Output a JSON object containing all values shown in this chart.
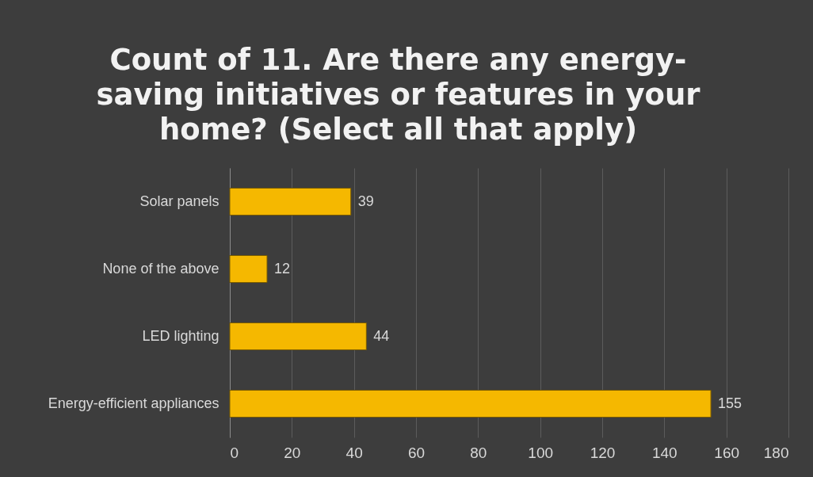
{
  "chart_data": {
    "type": "bar",
    "orientation": "horizontal",
    "title": "Count of 11. Are there any energy-saving initiatives or features in your home? (Select all that apply)",
    "categories": [
      "Solar panels",
      "None of the above",
      "LED lighting",
      "Energy-efficient appliances"
    ],
    "values": [
      39,
      12,
      44,
      155
    ],
    "color": "#f5b800",
    "xlim": [
      0,
      180
    ],
    "xticks": [
      0,
      20,
      40,
      60,
      80,
      100,
      120,
      140,
      160,
      180
    ],
    "grid": "x",
    "data_labels": true
  }
}
